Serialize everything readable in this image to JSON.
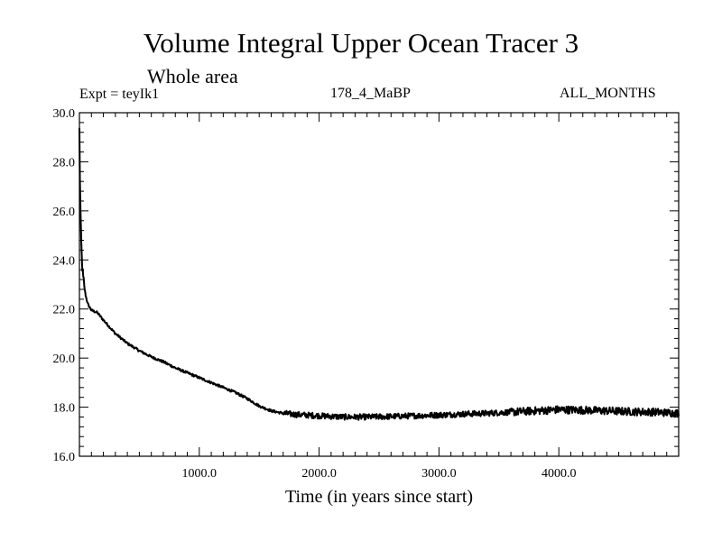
{
  "header": {
    "title": "Volume Integral Upper Ocean Tracer 3",
    "subtitle": "Whole area",
    "experiment": "Expt = teyIk1",
    "run_label": "178_4_MaBP",
    "period": "ALL_MONTHS"
  },
  "chart_data": {
    "type": "line",
    "title": "Volume Integral Upper Ocean Tracer 3",
    "subtitle": "Whole area",
    "xlabel": "Time (in years since start)",
    "ylabel": "",
    "xlim": [
      0,
      5000
    ],
    "ylim": [
      16.0,
      30.0
    ],
    "grid": false,
    "x_ticks": [
      1000,
      2000,
      3000,
      4000
    ],
    "x_tick_labels": [
      "1000.0",
      "2000.0",
      "3000.0",
      "4000.0"
    ],
    "y_ticks": [
      16,
      18,
      20,
      22,
      24,
      26,
      28,
      30
    ],
    "y_tick_labels": [
      "16.0",
      "18.0",
      "20.0",
      "22.0",
      "24.0",
      "26.0",
      "28.0",
      "30.0"
    ],
    "series": [
      {
        "name": "Tracer 3",
        "color": "#000000",
        "x": [
          0,
          5,
          10,
          20,
          30,
          50,
          70,
          100,
          150,
          200,
          300,
          400,
          500,
          600,
          700,
          800,
          900,
          1000,
          1100,
          1200,
          1300,
          1400,
          1500,
          1600,
          1700,
          1800,
          2000,
          2200,
          2400,
          2600,
          2800,
          3000,
          3200,
          3400,
          3600,
          3800,
          4000,
          4200,
          4400,
          4600,
          4800,
          5000
        ],
        "values": [
          29.3,
          27.0,
          25.5,
          24.0,
          23.3,
          22.6,
          22.2,
          21.95,
          21.85,
          21.55,
          21.0,
          20.6,
          20.3,
          20.05,
          19.85,
          19.6,
          19.4,
          19.2,
          19.0,
          18.8,
          18.6,
          18.35,
          18.05,
          17.85,
          17.75,
          17.7,
          17.65,
          17.6,
          17.6,
          17.62,
          17.65,
          17.68,
          17.72,
          17.75,
          17.8,
          17.85,
          17.9,
          17.88,
          17.85,
          17.82,
          17.8,
          17.75
        ]
      }
    ]
  }
}
